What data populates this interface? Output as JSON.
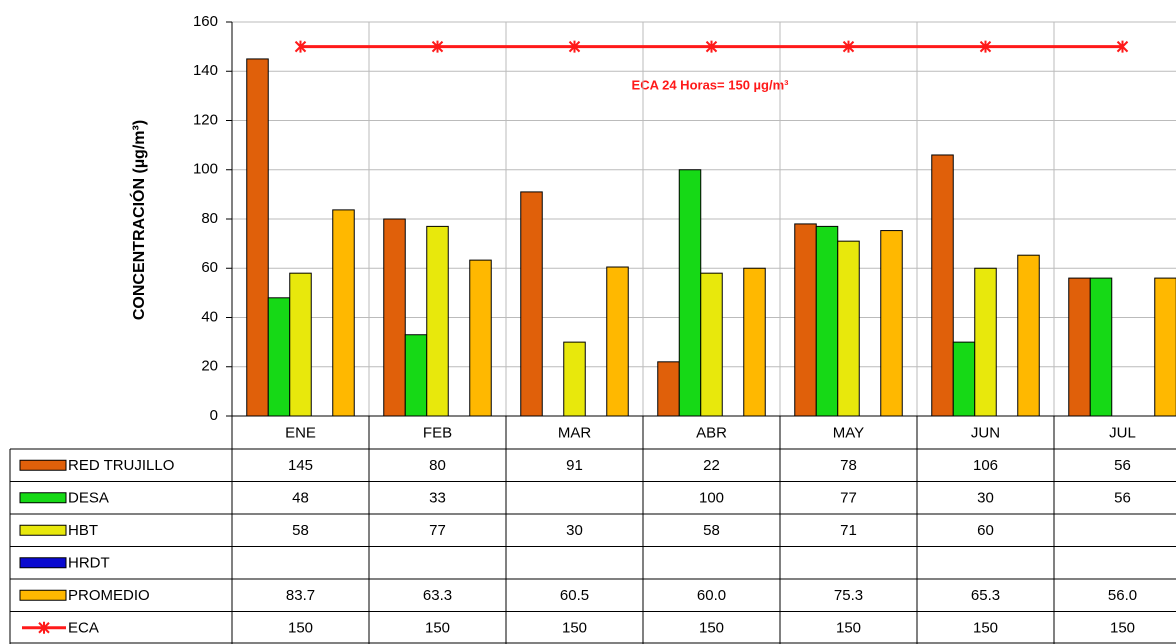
{
  "chart_data": {
    "type": "bar",
    "y_axis_label": "CONCENTRACIÓN (µg/m³)",
    "annotation": "ECA 24 Horas= 150 µg/m³",
    "categories": [
      "ENE",
      "FEB",
      "MAR",
      "ABR",
      "MAY",
      "JUN",
      "JUL"
    ],
    "ylim": [
      0,
      160
    ],
    "yticks": [
      0,
      20,
      40,
      60,
      80,
      100,
      120,
      140,
      160
    ],
    "grid": true,
    "series": [
      {
        "name": "RED TRUJILLO",
        "color": "#e0600a",
        "values": [
          145,
          80,
          91,
          22,
          78,
          106,
          56
        ]
      },
      {
        "name": "DESA",
        "color": "#16d916",
        "values": [
          48,
          33,
          null,
          100,
          77,
          30,
          56
        ]
      },
      {
        "name": "HBT",
        "color": "#e8e80c",
        "values": [
          58,
          77,
          30,
          58,
          71,
          60,
          null
        ]
      },
      {
        "name": "HRDT",
        "color": "#0a0ad0",
        "values": [
          null,
          null,
          null,
          null,
          null,
          null,
          null
        ]
      },
      {
        "name": "PROMEDIO",
        "color": "#ffb800",
        "values": [
          83.7,
          63.3,
          60.5,
          60.0,
          75.3,
          65.3,
          56.0
        ],
        "value_labels": [
          "83.7",
          "63.3",
          "60.5",
          "60.0",
          "75.3",
          "65.3",
          "56.0"
        ]
      },
      {
        "name": "ECA",
        "color": "#ff1a1a",
        "type": "line",
        "values": [
          150,
          150,
          150,
          150,
          150,
          150,
          150
        ]
      }
    ]
  }
}
